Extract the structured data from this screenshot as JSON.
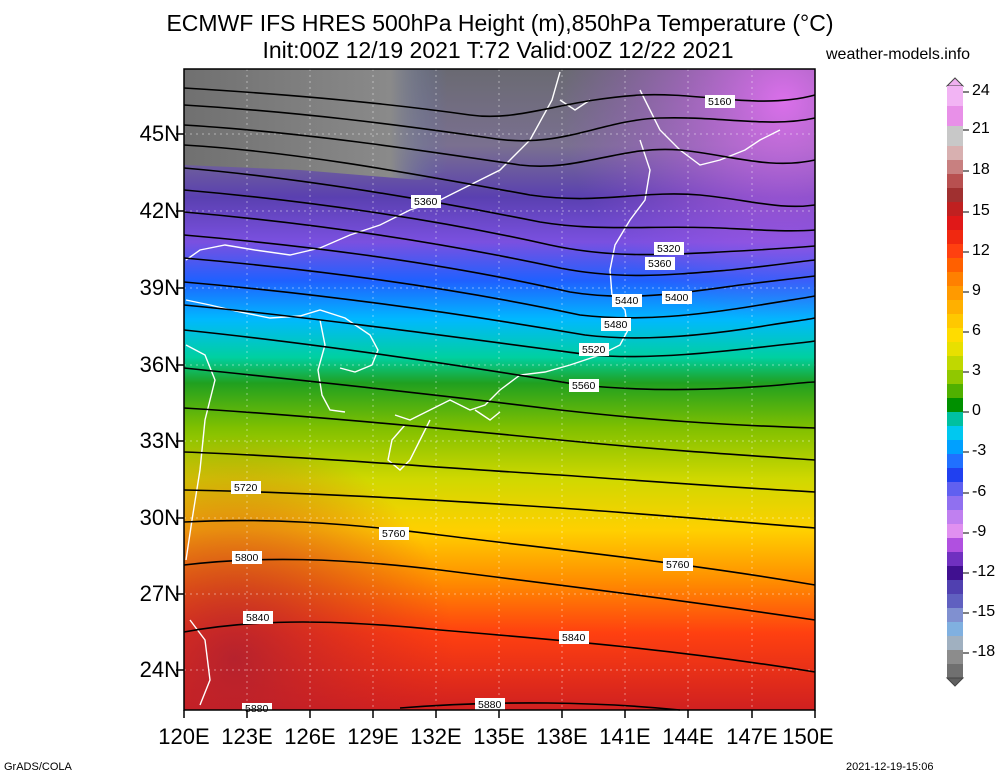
{
  "header": {
    "title_line1": "ECMWF IFS HRES 500hPa Height (m),850hPa Temperature (°C)",
    "title_line2": "Init:00Z 12/19 2021 T:72 Valid:00Z 12/22 2021",
    "site": "weather-models.info"
  },
  "footer": {
    "software": "GrADS/COLA",
    "generated": "2021-12-19-15:06"
  },
  "map": {
    "region": "Japan / East Asia",
    "lat_labels": [
      "45N",
      "42N",
      "39N",
      "36N",
      "33N",
      "30N",
      "27N",
      "24N"
    ],
    "lon_labels": [
      "120E",
      "123E",
      "126E",
      "129E",
      "132E",
      "135E",
      "138E",
      "141E",
      "144E",
      "147E",
      "150E"
    ],
    "height_contour_labels": [
      "5160",
      "5360",
      "5320",
      "5360",
      "5400",
      "5440",
      "5480",
      "5520",
      "5560",
      "5720",
      "5760",
      "5800",
      "5760",
      "5840",
      "5840",
      "5880",
      "5880"
    ]
  },
  "colorbar": {
    "labels": [
      "24",
      "21",
      "18",
      "15",
      "12",
      "9",
      "6",
      "3",
      "0",
      "-3",
      "-6",
      "-9",
      "-12",
      "-15",
      "-18"
    ],
    "colors": [
      "#e0b0e8",
      "#c8c8c8",
      "#d8a0a0",
      "#b04040",
      "#e02020",
      "#ff8000",
      "#ffd000",
      "#a0d000",
      "#008000",
      "#00a0e0",
      "#2040ff",
      "#c060f0",
      "#401090",
      "#6050c0",
      "#a0a0a0"
    ]
  }
}
